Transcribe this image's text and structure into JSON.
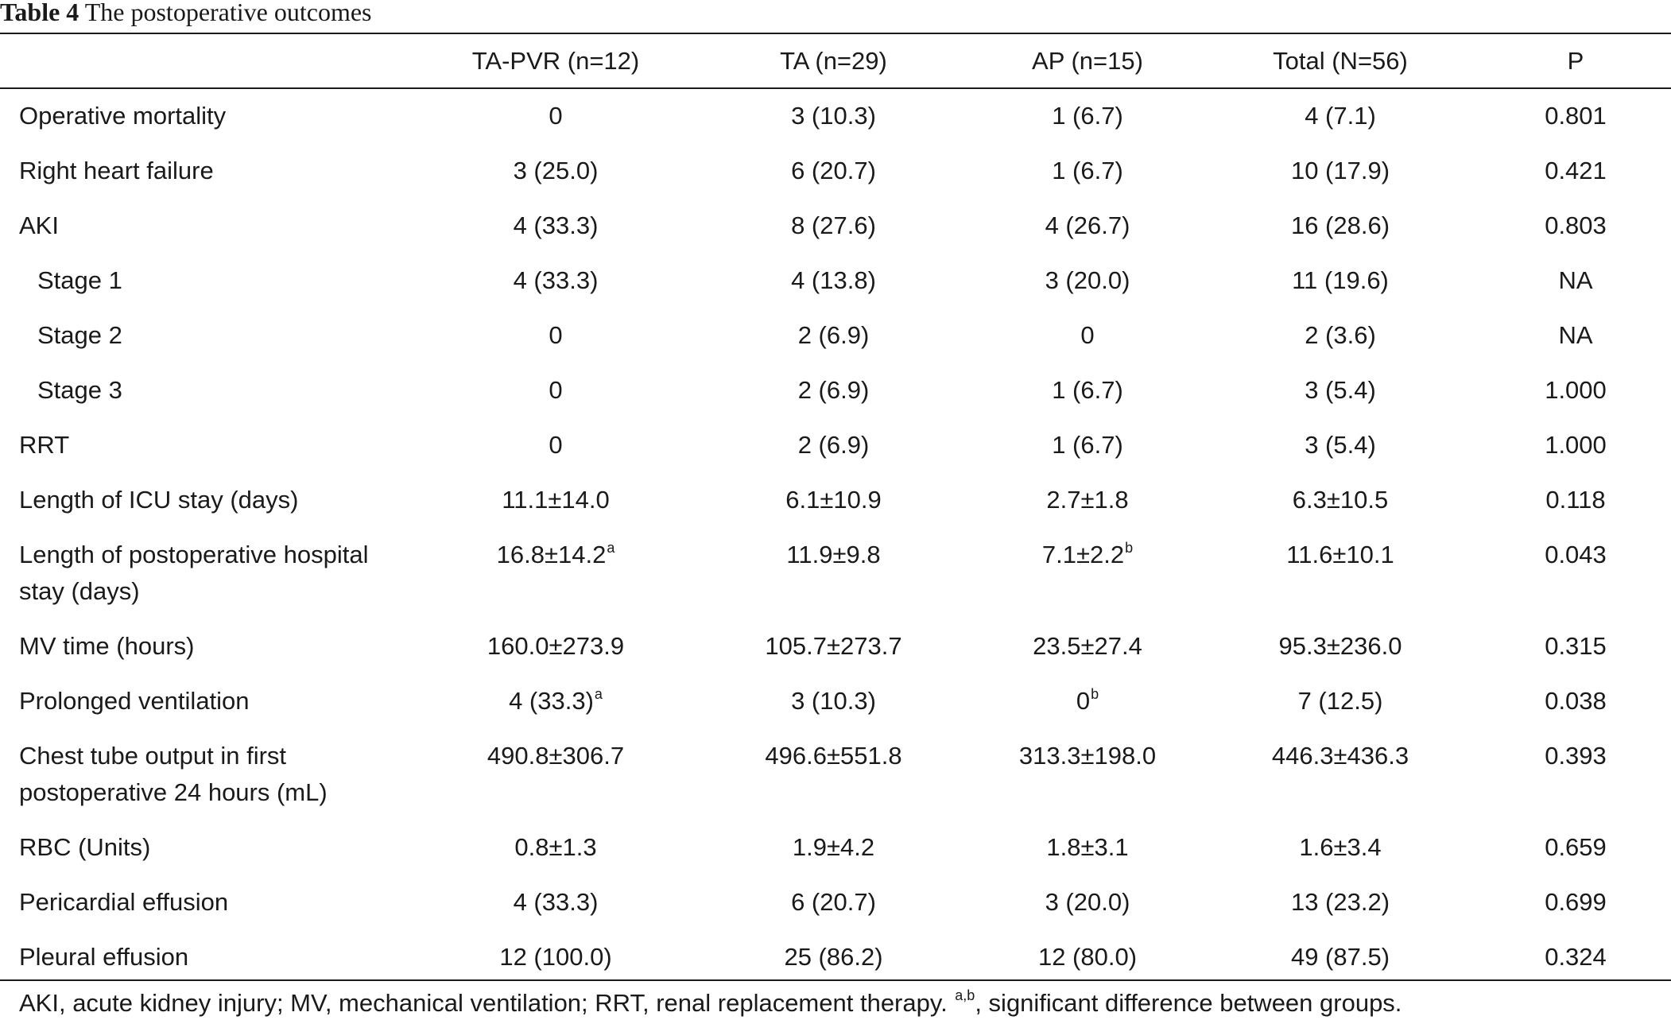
{
  "caption": {
    "label": "Table 4",
    "title": "The postoperative outcomes"
  },
  "table": {
    "columns": [
      "",
      "TA-PVR (n=12)",
      "TA (n=29)",
      "AP (n=15)",
      "Total (N=56)",
      "P"
    ],
    "rows": [
      {
        "label": "Operative mortality",
        "indent": false,
        "cells": [
          {
            "v": "0"
          },
          {
            "v": "3 (10.3)"
          },
          {
            "v": "1 (6.7)"
          },
          {
            "v": "4 (7.1)"
          },
          {
            "v": "0.801"
          }
        ]
      },
      {
        "label": "Right heart failure",
        "indent": false,
        "cells": [
          {
            "v": "3 (25.0)"
          },
          {
            "v": "6 (20.7)"
          },
          {
            "v": "1 (6.7)"
          },
          {
            "v": "10 (17.9)"
          },
          {
            "v": "0.421"
          }
        ]
      },
      {
        "label": "AKI",
        "indent": false,
        "cells": [
          {
            "v": "4 (33.3)"
          },
          {
            "v": "8 (27.6)"
          },
          {
            "v": "4 (26.7)"
          },
          {
            "v": "16 (28.6)"
          },
          {
            "v": "0.803"
          }
        ]
      },
      {
        "label": "Stage 1",
        "indent": true,
        "cells": [
          {
            "v": "4 (33.3)"
          },
          {
            "v": "4 (13.8)"
          },
          {
            "v": "3 (20.0)"
          },
          {
            "v": "11 (19.6)"
          },
          {
            "v": "NA"
          }
        ]
      },
      {
        "label": "Stage 2",
        "indent": true,
        "cells": [
          {
            "v": "0"
          },
          {
            "v": "2 (6.9)"
          },
          {
            "v": "0"
          },
          {
            "v": "2 (3.6)"
          },
          {
            "v": "NA"
          }
        ]
      },
      {
        "label": "Stage 3",
        "indent": true,
        "cells": [
          {
            "v": "0"
          },
          {
            "v": "2 (6.9)"
          },
          {
            "v": "1 (6.7)"
          },
          {
            "v": "3 (5.4)"
          },
          {
            "v": "1.000"
          }
        ]
      },
      {
        "label": "RRT",
        "indent": false,
        "cells": [
          {
            "v": "0"
          },
          {
            "v": "2 (6.9)"
          },
          {
            "v": "1 (6.7)"
          },
          {
            "v": "3 (5.4)"
          },
          {
            "v": "1.000"
          }
        ]
      },
      {
        "label": "Length of ICU stay (days)",
        "indent": false,
        "cells": [
          {
            "v": "11.1±14.0"
          },
          {
            "v": "6.1±10.9"
          },
          {
            "v": "2.7±1.8"
          },
          {
            "v": "6.3±10.5"
          },
          {
            "v": "0.118"
          }
        ]
      },
      {
        "label": "Length of postoperative hospital stay (days)",
        "indent": false,
        "cells": [
          {
            "v": "16.8±14.2",
            "sup": "a"
          },
          {
            "v": "11.9±9.8"
          },
          {
            "v": "7.1±2.2",
            "sup": "b"
          },
          {
            "v": "11.6±10.1"
          },
          {
            "v": "0.043"
          }
        ]
      },
      {
        "label": "MV time (hours)",
        "indent": false,
        "cells": [
          {
            "v": "160.0±273.9"
          },
          {
            "v": "105.7±273.7"
          },
          {
            "v": "23.5±27.4"
          },
          {
            "v": "95.3±236.0"
          },
          {
            "v": "0.315"
          }
        ]
      },
      {
        "label": "Prolonged ventilation",
        "indent": false,
        "cells": [
          {
            "v": "4 (33.3)",
            "sup": "a"
          },
          {
            "v": "3 (10.3)"
          },
          {
            "v": "0",
            "sup": "b"
          },
          {
            "v": "7 (12.5)"
          },
          {
            "v": "0.038"
          }
        ]
      },
      {
        "label": "Chest tube output in first postoperative 24 hours (mL)",
        "indent": false,
        "cells": [
          {
            "v": "490.8±306.7"
          },
          {
            "v": "496.6±551.8"
          },
          {
            "v": "313.3±198.0"
          },
          {
            "v": "446.3±436.3"
          },
          {
            "v": "0.393"
          }
        ]
      },
      {
        "label": "RBC (Units)",
        "indent": false,
        "cells": [
          {
            "v": "0.8±1.3"
          },
          {
            "v": "1.9±4.2"
          },
          {
            "v": "1.8±3.1"
          },
          {
            "v": "1.6±3.4"
          },
          {
            "v": "0.659"
          }
        ]
      },
      {
        "label": "Pericardial effusion",
        "indent": false,
        "cells": [
          {
            "v": "4 (33.3)"
          },
          {
            "v": "6 (20.7)"
          },
          {
            "v": "3 (20.0)"
          },
          {
            "v": "13 (23.2)"
          },
          {
            "v": "0.699"
          }
        ]
      },
      {
        "label": "Pleural effusion",
        "indent": false,
        "cells": [
          {
            "v": "12 (100.0)"
          },
          {
            "v": "25 (86.2)"
          },
          {
            "v": "12 (80.0)"
          },
          {
            "v": "49 (87.5)"
          },
          {
            "v": "0.324"
          }
        ]
      }
    ]
  },
  "footnote": {
    "before": "AKI, acute kidney injury; MV, mechanical ventilation; RRT, renal replacement therapy. ",
    "mark": "a,b",
    "after": ", significant difference between groups."
  }
}
